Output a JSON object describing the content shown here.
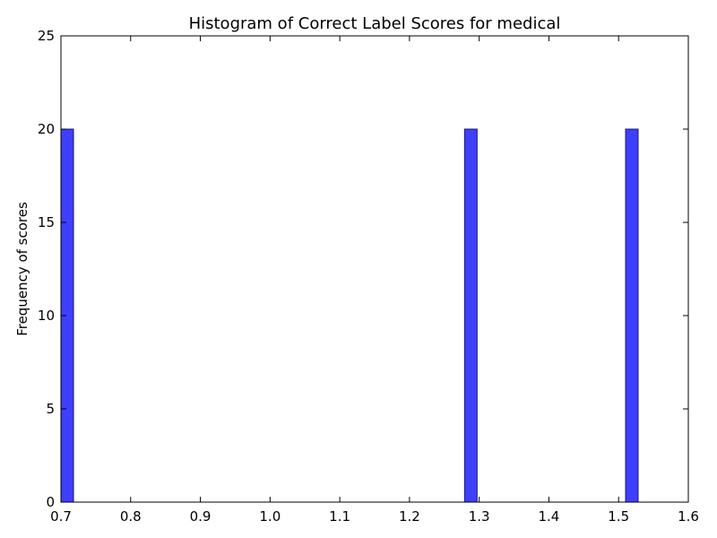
{
  "chart_data": {
    "type": "bar",
    "title": "Histogram of Correct Label Scores for medical",
    "xlabel": "",
    "ylabel": "Frequency of scores",
    "xlim": [
      0.7,
      1.6
    ],
    "ylim": [
      0,
      25
    ],
    "x_ticks": [
      "0.7",
      "0.8",
      "0.9",
      "1.0",
      "1.1",
      "1.2",
      "1.3",
      "1.4",
      "1.5",
      "1.6"
    ],
    "y_ticks": [
      "0",
      "5",
      "10",
      "15",
      "20",
      "25"
    ],
    "bin_width": 0.018,
    "bins": [
      {
        "x_start": 0.7,
        "x_end": 0.718,
        "count": 20
      },
      {
        "x_start": 1.279,
        "x_end": 1.297,
        "count": 20
      },
      {
        "x_start": 1.51,
        "x_end": 1.528,
        "count": 20
      }
    ],
    "bar_color": "#3f3ffc",
    "edge_color": "#1a1a6e",
    "grid": false,
    "legend": "none"
  }
}
